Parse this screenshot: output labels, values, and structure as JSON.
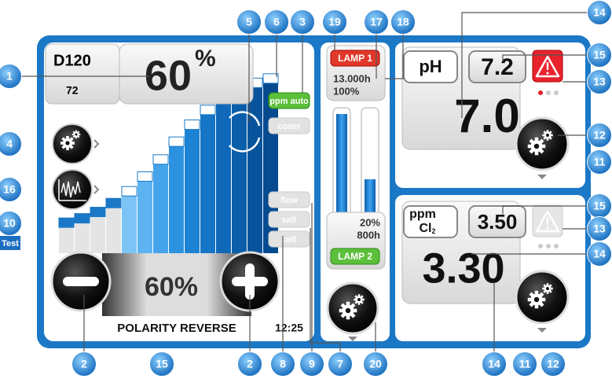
{
  "callouts": [
    "1",
    "5",
    "6",
    "3",
    "19",
    "17",
    "18",
    "14",
    "15",
    "13",
    "12",
    "11",
    "4",
    "16",
    "10",
    "15",
    "13",
    "14",
    "2",
    "15",
    "2",
    "8",
    "9",
    "7",
    "20",
    "14",
    "11",
    "12"
  ],
  "test_label": "Test",
  "left_panel": {
    "model": "D120",
    "model_sub": "72",
    "production": "60",
    "production_unit": "%",
    "buttons": [
      "ppm auto",
      "cover",
      "flow",
      "salt",
      "cell"
    ],
    "setpoint": "60%",
    "status": "POLARITY REVERSE",
    "time": "12:25"
  },
  "lamp_panel": {
    "lamp1": "LAMP 1",
    "lamp1_hours": "13.000h",
    "lamp1_percent": "100%",
    "lamp2_percent": "20%",
    "lamp2_hours": "800h",
    "lamp2": "LAMP 2"
  },
  "ph_panel": {
    "label": "pH",
    "setpoint": "7.2",
    "reading": "7.0"
  },
  "cl_panel": {
    "label": "ppm",
    "label_sub": "Cl",
    "label_sub2": "2",
    "setpoint": "3.50",
    "reading": "3.30"
  }
}
